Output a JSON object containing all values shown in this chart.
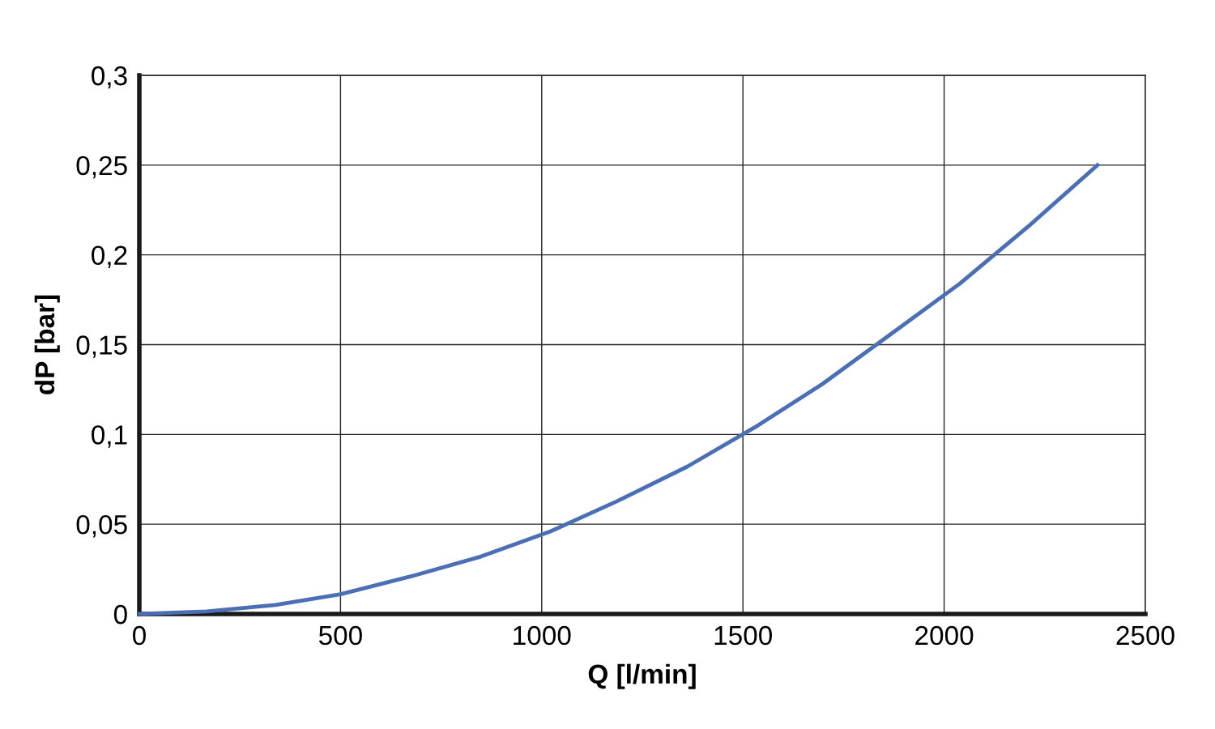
{
  "chart_data": {
    "type": "line",
    "xlabel": "Q [l/min]",
    "ylabel": "dP [bar]",
    "x": [
      0,
      167,
      338,
      500,
      676,
      849,
      1022,
      1189,
      1361,
      1530,
      1697,
      1862,
      2039,
      2210,
      2381
    ],
    "series": [
      {
        "color": "#4a6fb5",
        "values": [
          0,
          0.0014,
          0.005,
          0.011,
          0.021,
          0.032,
          0.046,
          0.063,
          0.082,
          0.104,
          0.128,
          0.155,
          0.184,
          0.216,
          0.25
        ]
      }
    ],
    "xlim": [
      0,
      2500
    ],
    "xticks": [
      0,
      500,
      1000,
      1500,
      2000,
      2500
    ],
    "ylim": [
      0,
      0.3
    ],
    "yticks": [
      0,
      {
        "value": 0.05,
        "label": "0,05"
      },
      {
        "value": 0.1,
        "label": "0,1"
      },
      {
        "value": 0.15,
        "label": "0,15"
      },
      {
        "value": 0.2,
        "label": "0,2"
      },
      {
        "value": 0.25,
        "label": "0,25"
      },
      {
        "value": 0.3,
        "label": "0,3"
      }
    ],
    "grid": true,
    "marker": "none",
    "line_style": "solid"
  }
}
